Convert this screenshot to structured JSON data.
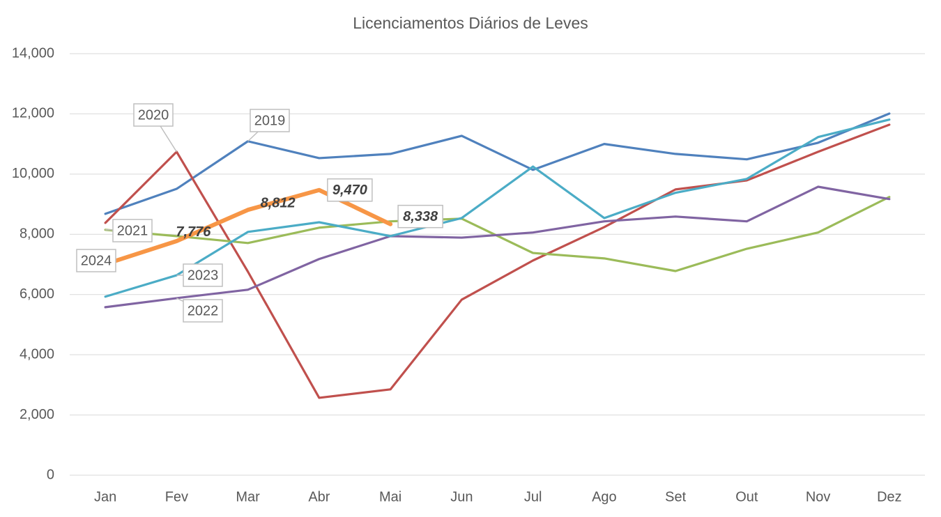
{
  "chart_data": {
    "type": "line",
    "title": "Licenciamentos Diários de Leves",
    "categories": [
      "Jan",
      "Fev",
      "Mar",
      "Abr",
      "Mai",
      "Jun",
      "Jul",
      "Ago",
      "Set",
      "Out",
      "Nov",
      "Dez"
    ],
    "series": [
      {
        "name": "2019",
        "color": "#4f81bd",
        "values": [
          8680,
          9510,
          11090,
          10530,
          10670,
          11270,
          10140,
          11000,
          10670,
          10490,
          11040,
          12010
        ]
      },
      {
        "name": "2020",
        "color": "#c0504d",
        "values": [
          8380,
          10740,
          6760,
          2570,
          2850,
          5830,
          7130,
          8240,
          9490,
          9790,
          10740,
          11640
        ]
      },
      {
        "name": "2021",
        "color": "#9bbb59",
        "values": [
          8150,
          7940,
          7710,
          8220,
          8430,
          8520,
          7380,
          7200,
          6780,
          7520,
          8060,
          9240
        ]
      },
      {
        "name": "2022",
        "color": "#8064a2",
        "values": [
          5580,
          5880,
          6160,
          7180,
          7940,
          7890,
          8060,
          8430,
          8590,
          8430,
          9580,
          9170
        ]
      },
      {
        "name": "2023",
        "color": "#4bacc6",
        "values": [
          5930,
          6640,
          8080,
          8400,
          7940,
          8540,
          10250,
          8540,
          9380,
          9840,
          11230,
          11810
        ]
      },
      {
        "name": "2024",
        "color": "#f79646",
        "values": [
          7010,
          7776,
          8812,
          9470,
          8338,
          null,
          null,
          null,
          null,
          null,
          null,
          null
        ],
        "value_labels": [
          null,
          "7,776",
          "8,812",
          "9,470",
          "8,338",
          null,
          null,
          null,
          null,
          null,
          null,
          null
        ]
      }
    ],
    "ylim": [
      0,
      14000
    ],
    "yticks": [
      0,
      {
        "value": 2000,
        "label": "2,000"
      },
      {
        "value": 4000,
        "label": "4,000"
      },
      {
        "value": 6000,
        "label": "6,000"
      },
      {
        "value": 8000,
        "label": "8,000"
      },
      {
        "value": 10000,
        "label": "10,000"
      },
      {
        "value": 12000,
        "label": "12,000"
      },
      {
        "value": 14000,
        "label": "14,000"
      }
    ],
    "grid": true
  }
}
